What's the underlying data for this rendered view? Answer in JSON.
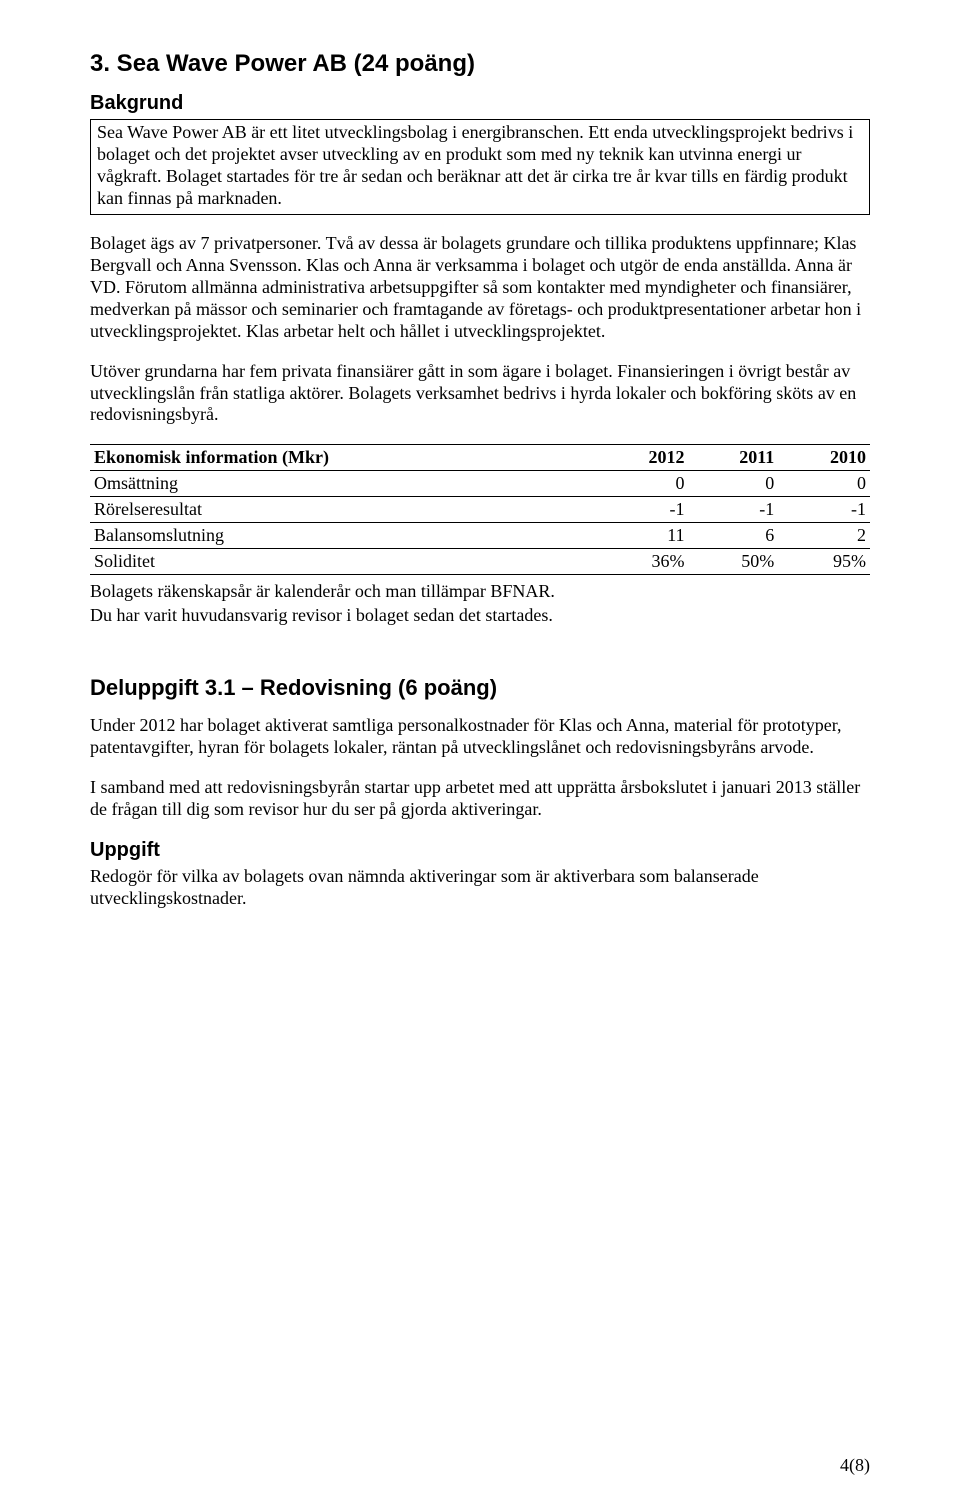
{
  "section": {
    "title": "3. Sea Wave Power AB (24 poäng)",
    "background_heading": "Bakgrund",
    "background_p1": "Sea Wave Power AB är ett litet utvecklingsbolag i energibranschen. Ett enda utvecklingsprojekt bedrivs i bolaget och det projektet avser utveckling av en produkt som med ny teknik kan utvinna energi ur vågkraft. Bolaget startades för tre år sedan och beräknar att det är cirka tre år kvar tills en färdig produkt kan finnas på marknaden.",
    "p2": "Bolaget ägs av 7 privatpersoner. Två av dessa är bolagets grundare och tillika produktens uppfinnare; Klas Bergvall och Anna Svensson. Klas och Anna är verksamma i bolaget och utgör de enda anställda. Anna är VD. Förutom allmänna administrativa arbetsuppgifter så som kontakter med myndigheter och finansiärer, medverkan på mässor och seminarier och framtagande av företags- och produktpresentationer arbetar hon i utvecklingsprojektet. Klas arbetar helt och hållet i utvecklingsprojektet.",
    "p3": "Utöver grundarna har fem privata finansiärer gått in som ägare i bolaget. Finansieringen i övrigt består av utvecklingslån från statliga aktörer. Bolagets verksamhet bedrivs i hyrda lokaler och bokföring sköts av en redovisningsbyrå.",
    "table": {
      "header_label": "Ekonomisk information (Mkr)",
      "years": [
        "2012",
        "2011",
        "2010"
      ],
      "rows": [
        {
          "label": "Omsättning",
          "values": [
            "0",
            "0",
            "0"
          ]
        },
        {
          "label": "Rörelseresultat",
          "values": [
            "-1",
            "-1",
            "-1"
          ]
        },
        {
          "label": "Balansomslutning",
          "values": [
            "11",
            "6",
            "2"
          ]
        },
        {
          "label": "Soliditet",
          "values": [
            "36%",
            "50%",
            "95%"
          ]
        }
      ]
    },
    "after_table_1": "Bolagets räkenskapsår är kalenderår och man tillämpar BFNAR.",
    "after_table_2": "Du har varit huvudansvarig revisor i bolaget sedan det startades."
  },
  "subtask": {
    "title": "Deluppgift 3.1 – Redovisning (6 poäng)",
    "p1": "Under 2012 har bolaget aktiverat samtliga personalkostnader för Klas och Anna, material för prototyper, patentavgifter, hyran för bolagets lokaler, räntan på utvecklingslånet och redovisningsbyråns arvode.",
    "p2": "I samband med att redovisningsbyrån startar upp arbetet med att upprätta årsbokslutet i januari 2013 ställer de frågan till dig som revisor hur du ser på gjorda aktiveringar.",
    "uppgift_heading": "Uppgift",
    "uppgift_text": "Redogör för vilka av bolagets ovan nämnda aktiveringar som är aktiverbara som balanserade utvecklingskostnader."
  },
  "footer": "4(8)"
}
